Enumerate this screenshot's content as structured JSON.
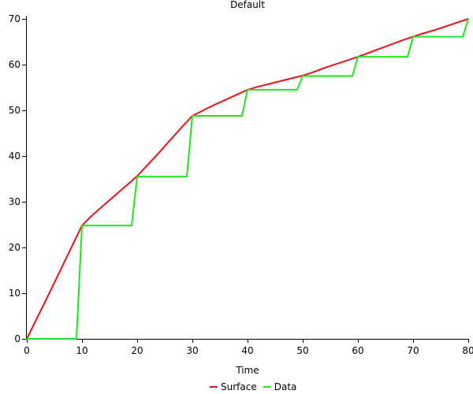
{
  "chart_data": {
    "type": "line",
    "title": "Default",
    "xlabel": "Time",
    "ylabel": "",
    "xlim": [
      0,
      80
    ],
    "ylim": [
      0,
      70
    ],
    "xticks": [
      0,
      10,
      20,
      30,
      40,
      50,
      60,
      70,
      80
    ],
    "yticks": [
      0,
      10,
      20,
      30,
      40,
      50,
      60,
      70
    ],
    "grid": false,
    "legend_position": "bottom",
    "series": [
      {
        "name": "Surface",
        "color": "#e8111a",
        "x": [
          0,
          2,
          4,
          6,
          8,
          10,
          12,
          14,
          16,
          18,
          20,
          22,
          24,
          26,
          28,
          30,
          32,
          34,
          36,
          38,
          40,
          42,
          44,
          46,
          48,
          50,
          52,
          54,
          56,
          58,
          60,
          62,
          64,
          66,
          68,
          70,
          72,
          74,
          76,
          78,
          80
        ],
        "y": [
          0,
          4.9,
          9.8,
          14.8,
          19.8,
          24.8,
          27.2,
          29.3,
          31.4,
          33.5,
          35.6,
          38.2,
          40.8,
          43.5,
          46.2,
          48.8,
          50.0,
          51.2,
          52.3,
          53.4,
          54.5,
          55.2,
          55.8,
          56.4,
          57.0,
          57.6,
          58.4,
          59.3,
          60.1,
          60.9,
          61.7,
          62.6,
          63.5,
          64.4,
          65.3,
          66.1,
          66.9,
          67.6,
          68.4,
          69.2,
          70.0
        ]
      },
      {
        "name": "Data",
        "color": "#1ee61e",
        "x": [
          0,
          9,
          10,
          19,
          20,
          29,
          30,
          39,
          40,
          49,
          50,
          59,
          60,
          69,
          70,
          79,
          80
        ],
        "y": [
          0,
          0,
          24.8,
          24.8,
          35.5,
          35.5,
          48.8,
          48.8,
          54.5,
          54.5,
          57.5,
          57.5,
          61.7,
          61.7,
          66.1,
          66.1,
          70.0
        ]
      }
    ]
  }
}
